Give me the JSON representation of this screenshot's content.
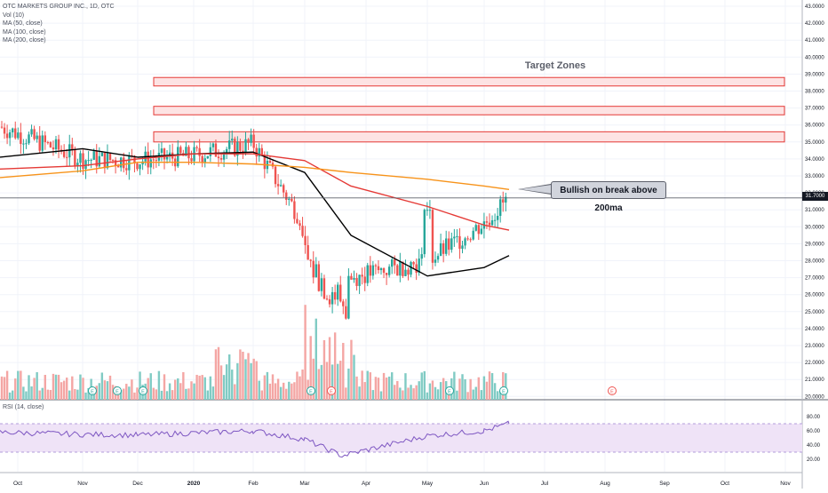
{
  "legend": {
    "symbol": "OTC MARKETS GROUP INC., 1D, OTC",
    "vol": "Vol (10)",
    "ma50": "MA (50, close)",
    "ma100": "MA (100, close)",
    "ma200": "MA (200, close)",
    "rsi": "RSI (14, close)"
  },
  "annotations": {
    "target_zones": "Target Zones",
    "callout": "Bullish on break above 200ma",
    "last_price": "31.7000",
    "event_marker": "E"
  },
  "colors": {
    "up": "#26a69a",
    "down": "#ef5350",
    "vol_up": "#80cbc4",
    "vol_down": "#f4a6a4",
    "ma50": "#000000",
    "ma100": "#e53935",
    "ma200": "#f7931a",
    "rsi": "#7e57c2",
    "zone_fill": "#fde3e3",
    "zone_border": "#e53935"
  },
  "chart_data": {
    "type": "candlestick",
    "title": "OTC MARKETS GROUP INC., 1D, OTC",
    "price_axis": {
      "ticks": [
        "20.0000",
        "21.0000",
        "22.0000",
        "23.0000",
        "24.0000",
        "25.0000",
        "26.0000",
        "27.0000",
        "28.0000",
        "29.0000",
        "30.0000",
        "31.0000",
        "32.0000",
        "33.0000",
        "34.0000",
        "35.0000",
        "36.0000",
        "37.0000",
        "38.0000",
        "39.0000",
        "40.0000",
        "41.0000",
        "42.0000",
        "43.0000"
      ],
      "range": [
        20,
        43
      ]
    },
    "rsi_axis": {
      "ticks": [
        "20.00",
        "40.00",
        "60.00",
        "80.00"
      ],
      "range": [
        0,
        100
      ],
      "band": [
        30,
        70
      ]
    },
    "time_axis": [
      "Oct",
      "Nov",
      "Dec",
      "2020",
      "Feb",
      "Mar",
      "Apr",
      "May",
      "Jun",
      "Jul",
      "Aug",
      "Sep",
      "Oct",
      "Nov"
    ],
    "target_zones": [
      [
        38.3,
        38.8
      ],
      [
        36.6,
        37.1
      ],
      [
        35.0,
        35.6
      ]
    ],
    "price_points": [
      [
        "Oct",
        35.9
      ],
      [
        "Nov",
        34.0
      ],
      [
        "Dec",
        33.9
      ],
      [
        "2020",
        34.2
      ],
      [
        "Feb",
        34.9
      ],
      [
        "Mar",
        30.1
      ],
      [
        "Apr",
        27.0
      ],
      [
        "May",
        28.0
      ],
      [
        "Jun",
        30.2
      ],
      [
        "Jun",
        31.7
      ]
    ],
    "moving_averages": [
      {
        "name": "MA (50, close)",
        "values": [
          34.1,
          34.6,
          34.1,
          34.3,
          34.4,
          33.2,
          29.5,
          27.1,
          27.6,
          28.3
        ]
      },
      {
        "name": "MA (100, close)",
        "values": [
          33.4,
          33.6,
          34.0,
          34.3,
          34.3,
          33.9,
          32.4,
          31.2,
          30.1,
          29.8
        ]
      },
      {
        "name": "MA (200, close)",
        "values": [
          32.9,
          33.3,
          33.8,
          33.8,
          33.7,
          33.5,
          33.2,
          32.8,
          32.4,
          32.2
        ]
      }
    ],
    "rsi": [
      58,
      55,
      54,
      57,
      60,
      48,
      25,
      53,
      60,
      70
    ]
  }
}
